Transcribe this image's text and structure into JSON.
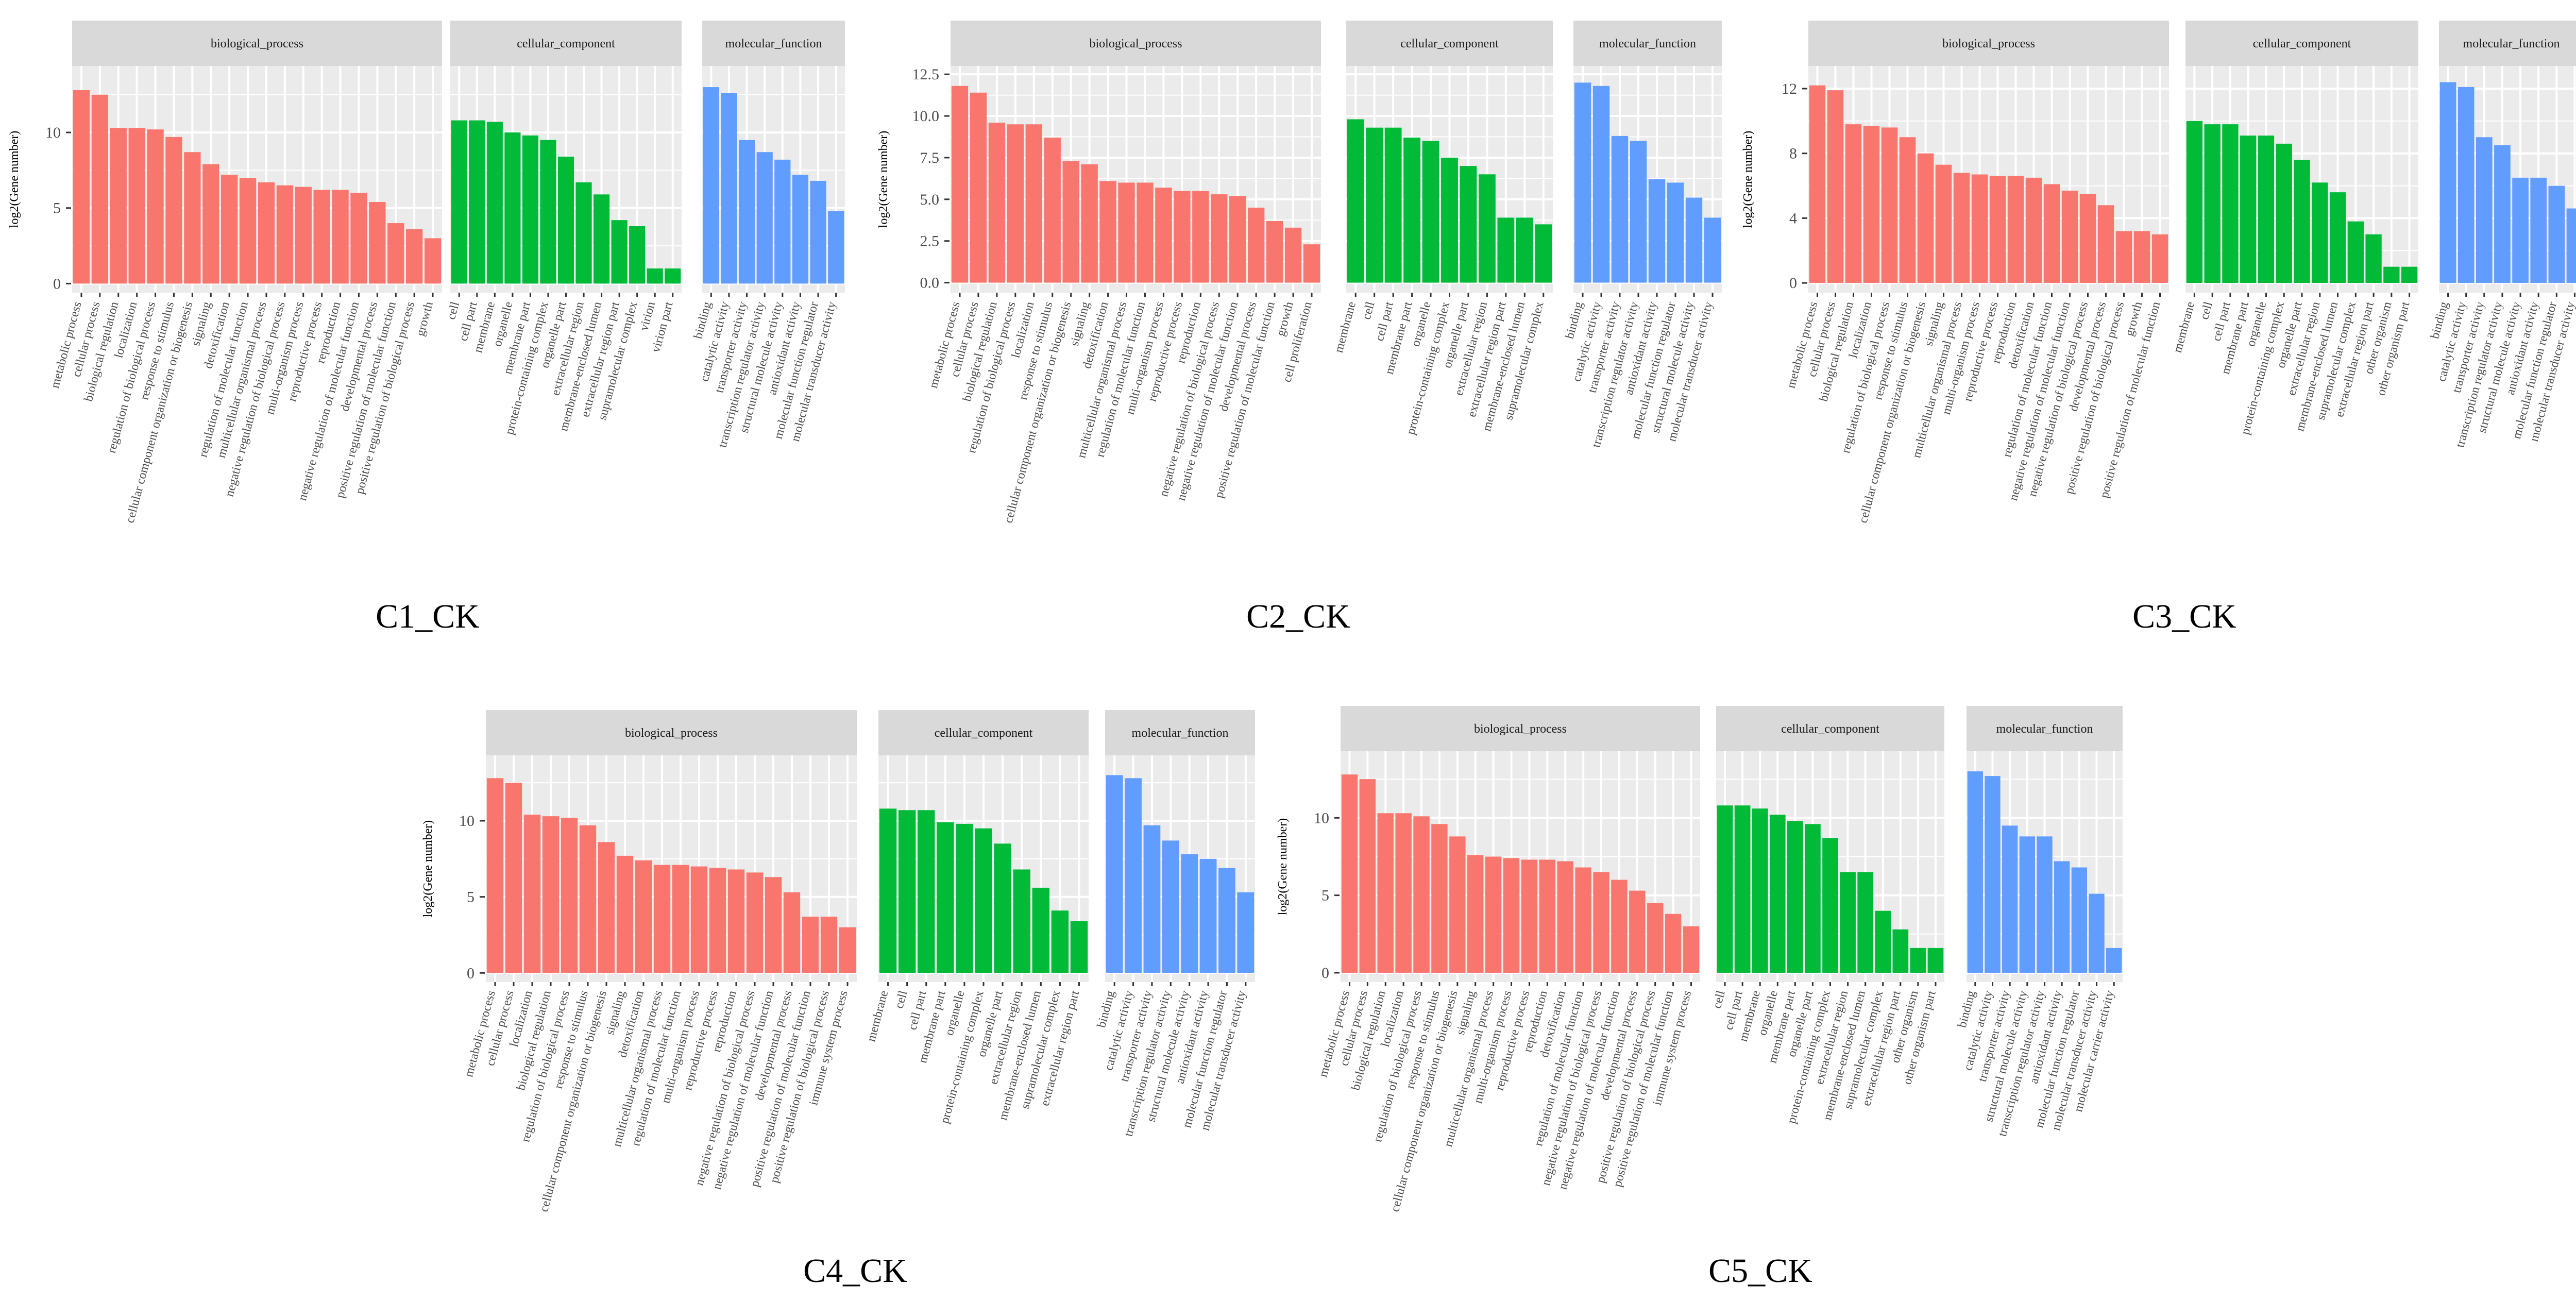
{
  "colors": {
    "panel_background": "#ebebeb",
    "grid": "#ffffff",
    "strip_background": "#d9d9d9",
    "biological_process": "#f8766d",
    "cellular_component": "#00ba38",
    "molecular_function": "#619cff"
  },
  "chart_data": [
    {
      "type": "bar",
      "title": "C1_CK",
      "ylabel": "log2(Gene number)",
      "ylim": [
        -0.6,
        14.4
      ],
      "yticks": [
        0,
        5,
        10
      ],
      "facets": [
        {
          "name": "biological_process",
          "categories": [
            "metabolic process",
            "cellular process",
            "biological regulation",
            "localization",
            "regulation of biological process",
            "response to stimulus",
            "cellular component organization or biogenesis",
            "signaling",
            "detoxification",
            "regulation of molecular function",
            "multicellular organismal process",
            "negative regulation of biological process",
            "multi-organism process",
            "reproductive process",
            "reproduction",
            "negative regulation of molecular function",
            "developmental process",
            "positive regulation of molecular function",
            "positive regulation of biological process",
            "growth"
          ],
          "values": [
            12.8,
            12.5,
            10.3,
            10.3,
            10.2,
            9.7,
            8.7,
            7.9,
            7.2,
            7.0,
            6.7,
            6.5,
            6.4,
            6.2,
            6.2,
            6.0,
            5.4,
            4.0,
            3.6,
            3.0
          ]
        },
        {
          "name": "cellular_component",
          "categories": [
            "cell",
            "cell part",
            "membrane",
            "organelle",
            "membrane part",
            "protein-containing complex",
            "organelle part",
            "extracellular region",
            "membrane-enclosed lumen",
            "extracellular region part",
            "supramolecular complex",
            "virion",
            "virion part"
          ],
          "values": [
            10.8,
            10.8,
            10.7,
            10.0,
            9.8,
            9.5,
            8.4,
            6.7,
            5.9,
            4.2,
            3.8,
            1.0,
            1.0
          ]
        },
        {
          "name": "molecular_function",
          "categories": [
            "binding",
            "catalytic activity",
            "transporter activity",
            "transcription regulator activity",
            "structural molecule activity",
            "antioxidant activity",
            "molecular function regulator",
            "molecular transducer activity"
          ],
          "values": [
            13.0,
            12.6,
            9.5,
            8.7,
            8.2,
            7.2,
            6.8,
            4.8
          ]
        }
      ]
    },
    {
      "type": "bar",
      "title": "C2_CK",
      "ylabel": "log2(Gene number)",
      "ylim": [
        -0.6,
        13.0
      ],
      "yticks": [
        0.0,
        2.5,
        5.0,
        7.5,
        10.0,
        12.5
      ],
      "ytick_labels": [
        "0.0",
        "2.5",
        "5.0",
        "7.5",
        "10.0",
        "12.5"
      ],
      "facets": [
        {
          "name": "biological_process",
          "categories": [
            "metabolic process",
            "cellular process",
            "biological regulation",
            "regulation of biological process",
            "localization",
            "response to stimulus",
            "cellular component organization or biogenesis",
            "signaling",
            "detoxification",
            "multicellular organismal process",
            "regulation of molecular function",
            "multi-organism process",
            "reproductive process",
            "reproduction",
            "negative regulation of biological process",
            "negative regulation of molecular function",
            "developmental process",
            "positive regulation of molecular function",
            "growth",
            "cell proliferation"
          ],
          "values": [
            11.8,
            11.4,
            9.6,
            9.5,
            9.5,
            8.7,
            7.3,
            7.1,
            6.1,
            6.0,
            6.0,
            5.7,
            5.5,
            5.5,
            5.3,
            5.2,
            4.5,
            3.7,
            3.3,
            2.3
          ]
        },
        {
          "name": "cellular_component",
          "categories": [
            "membrane",
            "cell",
            "cell part",
            "membrane part",
            "organelle",
            "protein-containing complex",
            "organelle part",
            "extracellular region",
            "extracellular region part",
            "membrane-enclosed lumen",
            "supramolecular complex"
          ],
          "values": [
            9.8,
            9.3,
            9.3,
            8.7,
            8.5,
            7.5,
            7.0,
            6.5,
            3.9,
            3.9,
            3.5
          ]
        },
        {
          "name": "molecular_function",
          "categories": [
            "binding",
            "catalytic activity",
            "transporter activity",
            "transcription regulator activity",
            "antioxidant activity",
            "molecular function regulator",
            "structural molecule activity",
            "molecular transducer activity"
          ],
          "values": [
            12.0,
            11.8,
            8.8,
            8.5,
            6.2,
            6.0,
            5.1,
            3.9
          ]
        }
      ]
    },
    {
      "type": "bar",
      "title": "C3_CK",
      "ylabel": "log2(Gene number)",
      "ylim": [
        -0.6,
        13.4
      ],
      "yticks": [
        0,
        4,
        8,
        12
      ],
      "facets": [
        {
          "name": "biological_process",
          "categories": [
            "metabolic process",
            "cellular process",
            "biological regulation",
            "localization",
            "regulation of biological process",
            "response to stimulus",
            "cellular component organization or biogenesis",
            "signaling",
            "multicellular organismal process",
            "multi-organism process",
            "reproductive process",
            "reproduction",
            "detoxification",
            "regulation of molecular function",
            "negative regulation of molecular function",
            "negative regulation of biological process",
            "developmental process",
            "positive regulation of biological process",
            "growth",
            "positive regulation of molecular function"
          ],
          "values": [
            12.2,
            11.9,
            9.8,
            9.7,
            9.6,
            9.0,
            8.0,
            7.3,
            6.8,
            6.7,
            6.6,
            6.6,
            6.5,
            6.1,
            5.7,
            5.5,
            4.8,
            3.2,
            3.2,
            3.0
          ]
        },
        {
          "name": "cellular_component",
          "categories": [
            "membrane",
            "cell",
            "cell part",
            "membrane part",
            "organelle",
            "protein-containing complex",
            "organelle part",
            "extracellular region",
            "membrane-enclosed lumen",
            "supramolecular complex",
            "extracellular region part",
            "other organism",
            "other organism part"
          ],
          "values": [
            10.0,
            9.8,
            9.8,
            9.1,
            9.1,
            8.6,
            7.6,
            6.2,
            5.6,
            3.8,
            3.0,
            1.0,
            1.0
          ]
        },
        {
          "name": "molecular_function",
          "categories": [
            "binding",
            "catalytic activity",
            "transporter activity",
            "transcription regulator activity",
            "structural molecule activity",
            "antioxidant activity",
            "molecular function regulator",
            "molecular transducer activity"
          ],
          "values": [
            12.4,
            12.1,
            9.0,
            8.5,
            6.5,
            6.5,
            6.0,
            4.6
          ]
        }
      ]
    },
    {
      "type": "bar",
      "title": "C4_CK",
      "ylabel": "log2(Gene number)",
      "ylim": [
        -0.6,
        14.3
      ],
      "yticks": [
        0,
        5,
        10
      ],
      "facets": [
        {
          "name": "biological_process",
          "categories": [
            "metabolic process",
            "cellular process",
            "localization",
            "biological regulation",
            "regulation of biological process",
            "response to stimulus",
            "cellular component organization or biogenesis",
            "signaling",
            "detoxification",
            "multicellular organismal process",
            "regulation of molecular function",
            "multi-organism process",
            "reproductive process",
            "reproduction",
            "negative regulation of biological process",
            "negative regulation of molecular function",
            "developmental process",
            "positive regulation of molecular function",
            "positive regulation of biological process",
            "immune system process"
          ],
          "values": [
            12.8,
            12.5,
            10.4,
            10.3,
            10.2,
            9.7,
            8.6,
            7.7,
            7.4,
            7.1,
            7.1,
            7.0,
            6.9,
            6.8,
            6.6,
            6.3,
            5.3,
            3.7,
            3.7,
            3.0
          ]
        },
        {
          "name": "cellular_component",
          "categories": [
            "membrane",
            "cell",
            "cell part",
            "membrane part",
            "organelle",
            "protein-containing complex",
            "organelle part",
            "extracellular region",
            "membrane-enclosed lumen",
            "supramolecular complex",
            "extracellular region part"
          ],
          "values": [
            10.8,
            10.7,
            10.7,
            9.9,
            9.8,
            9.5,
            8.5,
            6.8,
            5.6,
            4.1,
            3.4
          ]
        },
        {
          "name": "molecular_function",
          "categories": [
            "binding",
            "catalytic activity",
            "transporter activity",
            "transcription regulator activity",
            "structural molecule activity",
            "antioxidant activity",
            "molecular function regulator",
            "molecular transducer activity"
          ],
          "values": [
            13.0,
            12.8,
            9.7,
            8.7,
            7.8,
            7.5,
            6.9,
            5.3
          ]
        }
      ]
    },
    {
      "type": "bar",
      "title": "C5_CK",
      "ylabel": "log2(Gene number)",
      "ylim": [
        -0.6,
        14.3
      ],
      "yticks": [
        0,
        5,
        10
      ],
      "facets": [
        {
          "name": "biological_process",
          "categories": [
            "metabolic process",
            "cellular process",
            "biological regulation",
            "localization",
            "regulation of biological process",
            "response to stimulus",
            "cellular component organization or biogenesis",
            "signaling",
            "multicellular organismal process",
            "multi-organism process",
            "reproductive process",
            "reproduction",
            "detoxification",
            "regulation of molecular function",
            "negative regulation of biological process",
            "negative regulation of molecular function",
            "developmental process",
            "positive regulation of biological process",
            "positive regulation of molecular function",
            "immune system process"
          ],
          "values": [
            12.8,
            12.5,
            10.3,
            10.3,
            10.1,
            9.6,
            8.8,
            7.6,
            7.5,
            7.4,
            7.3,
            7.3,
            7.2,
            6.8,
            6.5,
            6.0,
            5.3,
            4.5,
            3.8,
            3.0
          ]
        },
        {
          "name": "cellular_component",
          "categories": [
            "cell",
            "cell part",
            "membrane",
            "organelle",
            "membrane part",
            "organelle part",
            "protein-containing complex",
            "extracellular region",
            "membrane-enclosed lumen",
            "supramolecular complex",
            "extracellular region part",
            "other organism",
            "other organism part"
          ],
          "values": [
            10.8,
            10.8,
            10.6,
            10.2,
            9.8,
            9.6,
            8.7,
            6.5,
            6.5,
            4.0,
            2.8,
            1.6,
            1.6
          ]
        },
        {
          "name": "molecular_function",
          "categories": [
            "binding",
            "catalytic activity",
            "transporter activity",
            "structural molecule activity",
            "transcription regulator activity",
            "antioxidant activity",
            "molecular function regulator",
            "molecular transducer activity",
            "molecular carrier activity"
          ],
          "values": [
            13.0,
            12.7,
            9.5,
            8.8,
            8.8,
            7.2,
            6.8,
            5.1,
            1.6
          ]
        }
      ]
    }
  ]
}
